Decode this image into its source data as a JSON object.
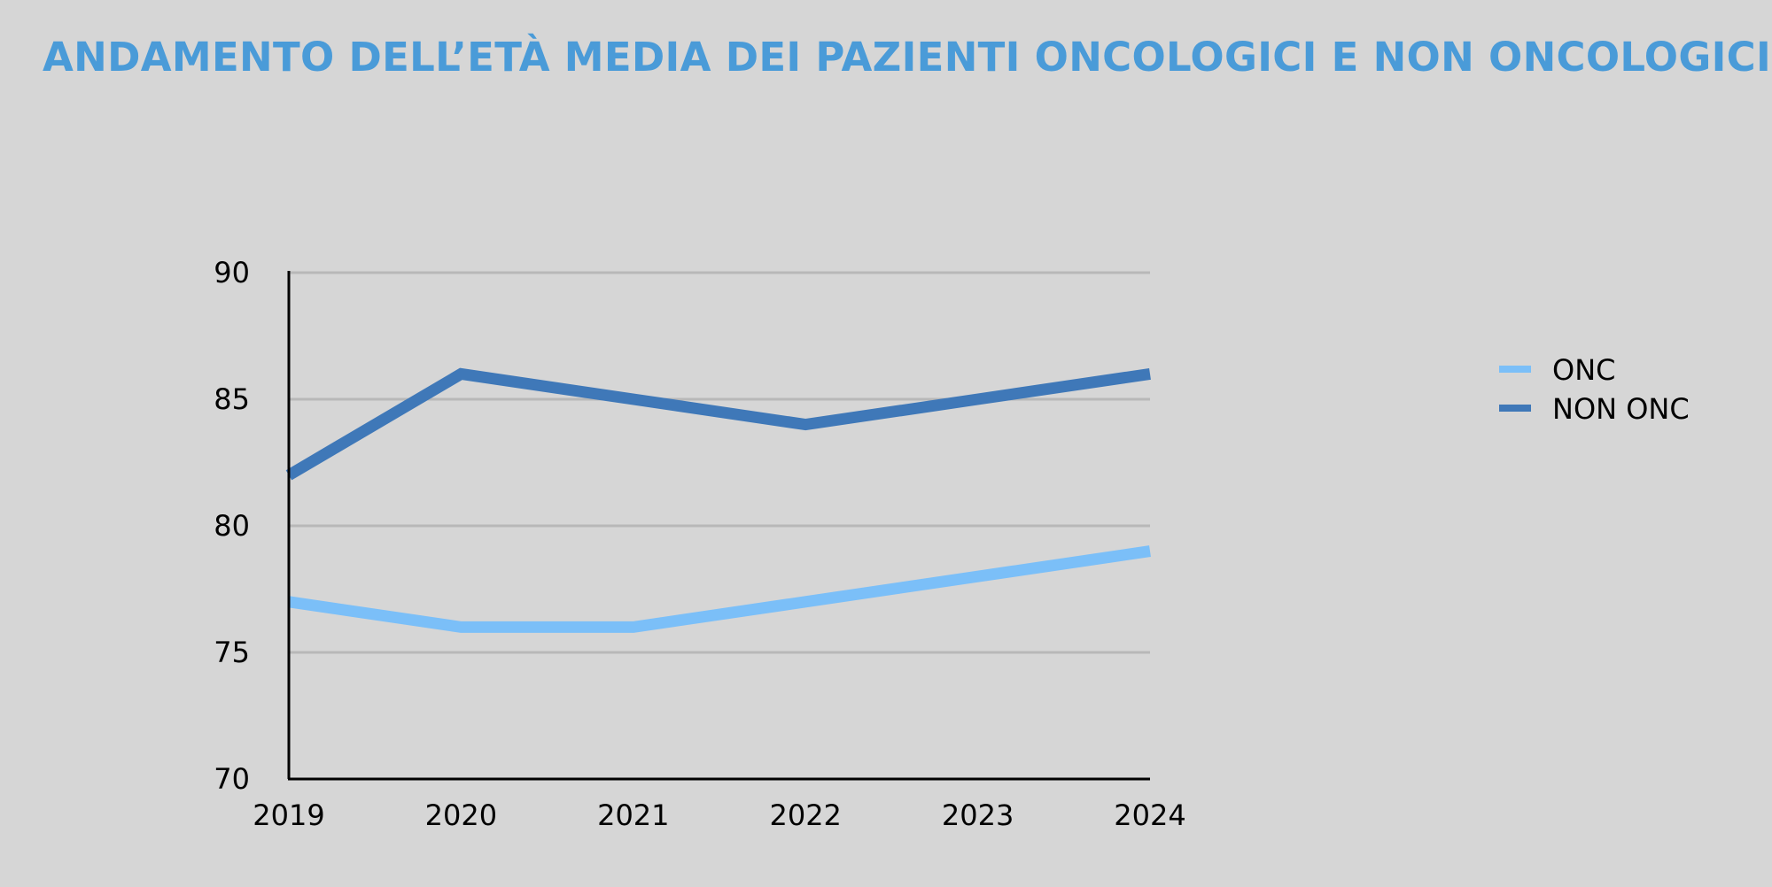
{
  "chart_data": {
    "type": "line",
    "title": "ANDAMENTO DELL’ETÀ MEDIA DEI PAZIENTI ONCOLOGICI E NON ONCOLOGICI",
    "xlabel": "",
    "ylabel": "",
    "x": [
      "2019",
      "2020",
      "2021",
      "2022",
      "2023",
      "2024"
    ],
    "ylim": [
      70,
      90
    ],
    "yticks": [
      "70",
      "75",
      "80",
      "85",
      "90"
    ],
    "grid": true,
    "legend_position": "right",
    "series": [
      {
        "name": "ONC",
        "values": [
          77,
          76,
          76,
          77,
          78,
          79
        ],
        "color": "#7bbff8"
      },
      {
        "name": "NON ONC",
        "values": [
          82,
          86,
          85,
          84,
          85,
          86
        ],
        "color": "#3f78b8"
      }
    ]
  },
  "colors": {
    "background": "#d6d6d6",
    "title": "#4a9bd8",
    "grid": "#b8b8b8",
    "axis": "#000000"
  }
}
